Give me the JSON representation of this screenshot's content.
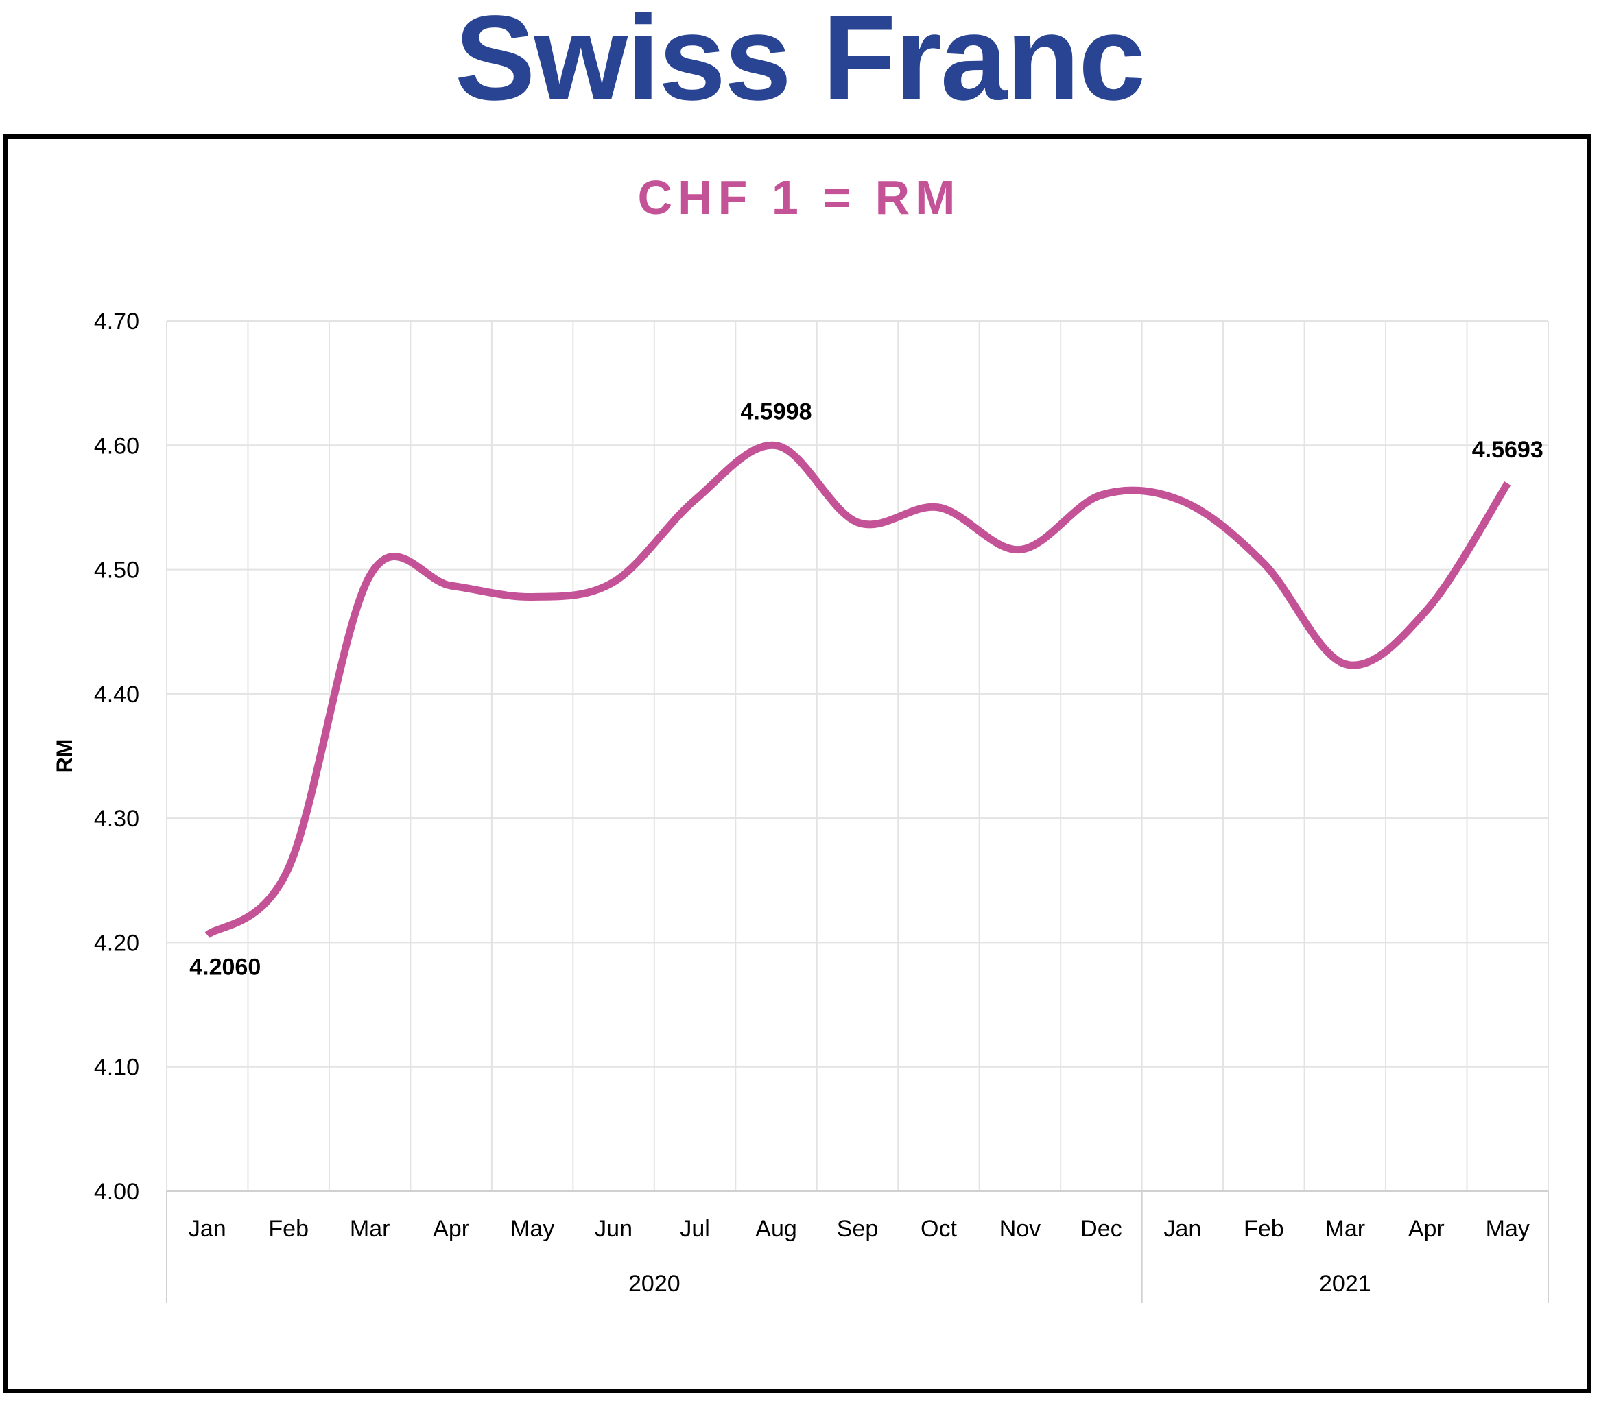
{
  "page": {
    "title": "Swiss Franc",
    "title_color": "#2A4494"
  },
  "chart_data": {
    "type": "line",
    "title": "CHF 1 = RM",
    "title_color": "#C45297",
    "line_color": "#C45297",
    "xlabel": "",
    "ylabel": "RM",
    "ylim": [
      4.0,
      4.7
    ],
    "y_ticks": [
      "4.00",
      "4.10",
      "4.20",
      "4.30",
      "4.40",
      "4.50",
      "4.60",
      "4.70"
    ],
    "grid": true,
    "legend": "none",
    "categories": [
      "Jan",
      "Feb",
      "Mar",
      "Apr",
      "May",
      "Jun",
      "Jul",
      "Aug",
      "Sep",
      "Oct",
      "Nov",
      "Dec",
      "Jan",
      "Feb",
      "Mar",
      "Apr",
      "May"
    ],
    "year_groups": [
      {
        "label": "2020",
        "count": 12
      },
      {
        "label": "2021",
        "count": 5
      }
    ],
    "series": [
      {
        "values": [
          4.206,
          4.26,
          4.495,
          4.487,
          4.478,
          4.49,
          4.556,
          4.5998,
          4.538,
          4.55,
          4.516,
          4.56,
          4.555,
          4.505,
          4.424,
          4.467,
          4.5693
        ]
      }
    ],
    "data_labels": [
      {
        "index": 0,
        "text": "4.2060",
        "position": "below"
      },
      {
        "index": 7,
        "text": "4.5998",
        "position": "above"
      },
      {
        "index": 16,
        "text": "4.5693",
        "position": "above"
      }
    ]
  }
}
